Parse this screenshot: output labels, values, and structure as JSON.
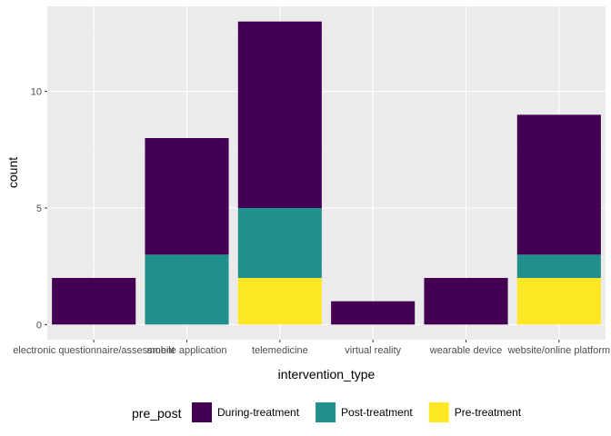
{
  "chart_data": {
    "type": "bar",
    "stacked": true,
    "xlabel": "intervention_type",
    "ylabel": "count",
    "ylim": [
      -0.65,
      13.65
    ],
    "yticks": [
      0,
      5,
      10
    ],
    "grid": true,
    "legend_position": "bottom",
    "legend_title": "pre_post",
    "categories": [
      "electronic questionnaire/assessment",
      "mobile application",
      "telemedicine",
      "virtual reality",
      "wearable device",
      "website/online platform"
    ],
    "series": [
      {
        "name": "Pre-treatment",
        "color": "#FDE725",
        "values": [
          0,
          0,
          2,
          0,
          0,
          2
        ]
      },
      {
        "name": "Post-treatment",
        "color": "#21908C",
        "values": [
          0,
          3,
          3,
          0,
          0,
          1
        ]
      },
      {
        "name": "During-treatment",
        "color": "#440154",
        "values": [
          2,
          5,
          8,
          1,
          2,
          6
        ]
      }
    ],
    "legend_order": [
      "During-treatment",
      "Post-treatment",
      "Pre-treatment"
    ]
  }
}
